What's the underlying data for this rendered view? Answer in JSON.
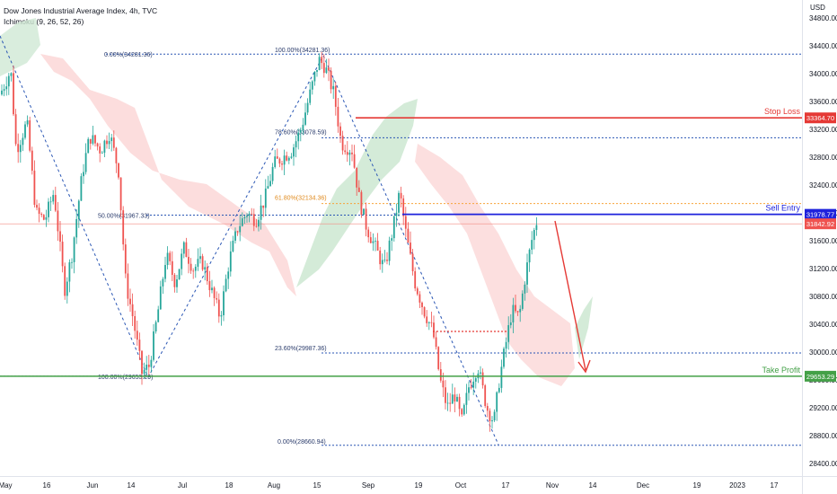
{
  "header": {
    "symbol_line": "Dow Jones Industrial Average Index, 4h, TVC",
    "indicator_line": "Ichimoku (9, 26, 52, 26)"
  },
  "chart_data": {
    "type": "candlestick",
    "currency": "USD",
    "y_range": [
      28300,
      34950
    ],
    "y_ticks": [
      34800,
      34400,
      34000,
      33600,
      33200,
      32800,
      32400,
      32000,
      31600,
      31200,
      30800,
      30400,
      30000,
      29600,
      29200,
      28800,
      28400
    ],
    "x_tick_labels": [
      "May",
      "16",
      "Jun",
      "14",
      "Jul",
      "18",
      "Aug",
      "15",
      "Sep",
      "19",
      "Oct",
      "17",
      "Nov",
      "14",
      "Dec",
      "19",
      "2023",
      "17"
    ],
    "fib_left": [
      {
        "label": "0.00%(34281.36)",
        "price": 34281.36
      },
      {
        "label": "50.00%(31967.33)",
        "price": 31967.33
      },
      {
        "label": "100.00%(29653.29)",
        "price": 29653.29
      }
    ],
    "fib_right": [
      {
        "label": "100.00%(34281.36)",
        "price": 34281.36
      },
      {
        "label": "78.60%(33078.59)",
        "price": 33078.59
      },
      {
        "label": "61.80%(32134.36)",
        "price": 32134.36
      },
      {
        "label": "23.60%(29987.36)",
        "price": 29987.36
      },
      {
        "label": "0.00%(28660.94)",
        "price": 28660.94
      }
    ],
    "levels": [
      {
        "name": "Stop Loss",
        "price": 33364.7,
        "price_label": "33364.70",
        "color": "#e53935"
      },
      {
        "name": "Sell Entry",
        "price": 31978.77,
        "price_label": "31978.77",
        "color": "#1e22dc"
      },
      {
        "name": "Take Profit",
        "price": 29653.29,
        "price_label": "29653.29",
        "color": "#43a047"
      }
    ],
    "current_price_label": "31842.92",
    "current_price": 31842.92,
    "colors": {
      "up": "#26a69a",
      "down": "#ef5350",
      "cloud_bear": "#fcd9d9",
      "cloud_bull": "#cfe9d4",
      "fib_line": "#2a56b4",
      "fib_orange": "#f7a43b",
      "arrow": "#e53935"
    }
  }
}
